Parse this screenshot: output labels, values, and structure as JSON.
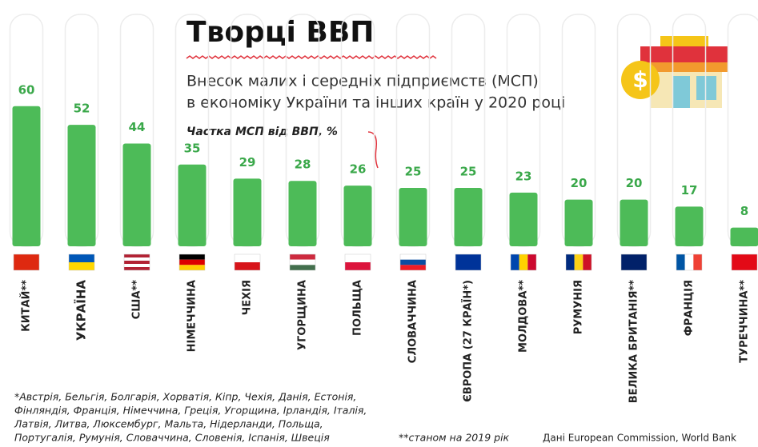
{
  "chart_data": {
    "type": "bar",
    "title": "Творці ВВП",
    "subtitle": [
      "Внесок малих і середніх підприємств (МСП)",
      "в економіку України та інших країн у 2020 році"
    ],
    "value_axis_label": "Частка МСП від ВВП, %",
    "categories": [
      "КИТАЙ**",
      "УКРАЇНА",
      "США**",
      "НІМЕЧЧИНА",
      "ЧЕХІЯ",
      "УГОРЩИНА",
      "ПОЛЬЩА",
      "СЛОВАЧЧИНА",
      "ЄВРОПА (27 КРАЇН*)",
      "МОЛДОВА**",
      "РУМУНІЯ",
      "ВЕЛИКА БРИТАНІЯ**",
      "ФРАНЦІЯ",
      "ТУРЕЧЧИНА**"
    ],
    "values": [
      60,
      52,
      44,
      35,
      29,
      28,
      26,
      25,
      25,
      23,
      20,
      20,
      17,
      8
    ],
    "color": "#4dbb58",
    "footnotes": [
      "*Австрія, Бельгія, Болгарія, Хорватія, Кіпр, Чехія, Данія, Естонія,",
      "Фінляндія, Франція, Німеччина, Греція, Угорщина, Ірландія, Італія,",
      "Латвія, Литва, Люксембург, Мальта, Нідерланди, Польща,",
      "Португалія, Румунія, Словаччина, Словенія, Іспанія, Швеція"
    ],
    "note": "**станом на 2019 рік",
    "source": "Дані European Commission, World Bank"
  }
}
